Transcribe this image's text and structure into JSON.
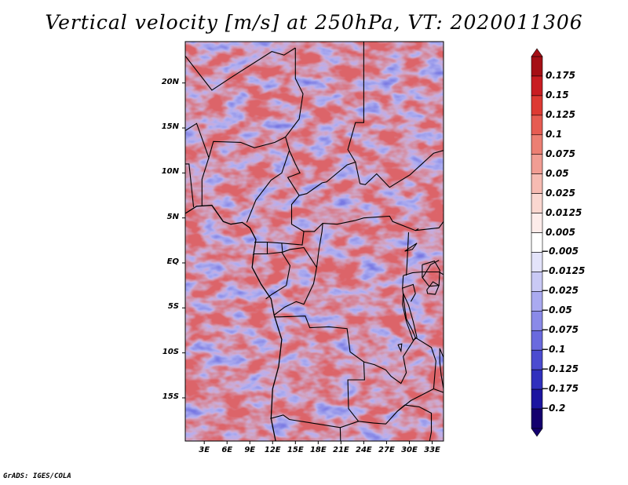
{
  "title": "Vertical velocity [m/s] at 250hPa, VT: 2020011306",
  "credit": "GrADS: IGES/COLA",
  "map": {
    "lat_labels": [
      "20N",
      "15N",
      "10N",
      "5N",
      "EQ",
      "5S",
      "10S",
      "15S"
    ],
    "lat_values": [
      20,
      15,
      10,
      5,
      0,
      -5,
      -10,
      -15
    ],
    "lon_labels": [
      "3E",
      "6E",
      "9E",
      "12E",
      "15E",
      "18E",
      "21E",
      "24E",
      "27E",
      "30E",
      "33E"
    ],
    "lon_values": [
      3,
      6,
      9,
      12,
      15,
      18,
      21,
      24,
      27,
      30,
      33
    ],
    "lon_range": [
      0.5,
      34.5
    ],
    "lat_range": [
      -19.8,
      24.6
    ]
  },
  "colorbar": {
    "labels": [
      "0.175",
      "0.15",
      "0.125",
      "0.1",
      "0.075",
      "0.05",
      "0.025",
      "0.0125",
      "0.005",
      "−0.005",
      "−0.0125",
      "−0.025",
      "−0.05",
      "−0.075",
      "−0.1",
      "−0.125",
      "−0.175",
      "−0.2"
    ],
    "colors": [
      "#a50f15",
      "#c81d22",
      "#dd3a33",
      "#e65c52",
      "#ec7f73",
      "#f19d93",
      "#f6bbb2",
      "#fad7d0",
      "#fdecea",
      "#ffffff",
      "#e3e3fa",
      "#c9c9f5",
      "#aaaaf0",
      "#8a8ae8",
      "#6a6ade",
      "#4b4bd0",
      "#3030bd",
      "#1c15a0",
      "#14006e"
    ]
  },
  "colors": {
    "positive": "#d94c4c",
    "negative": "#6b6bde",
    "neutral": "#ffffff"
  }
}
